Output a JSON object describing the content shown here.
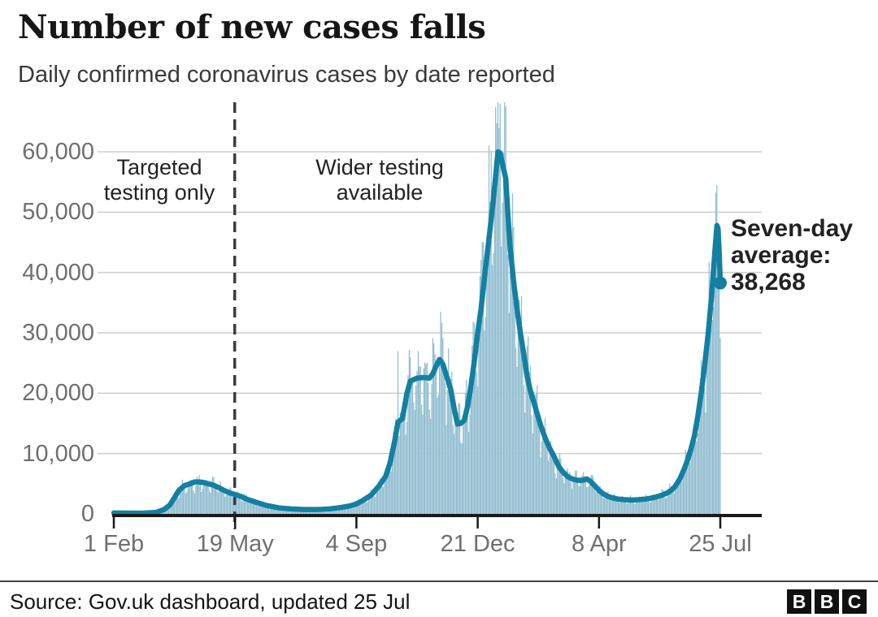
{
  "header": {
    "title": "Number of new cases falls",
    "subtitle": "Daily confirmed coronavirus cases by date reported"
  },
  "footer": {
    "source": "Source: Gov.uk dashboard, updated 25 Jul",
    "logo": [
      "B",
      "B",
      "C"
    ]
  },
  "chart_data": {
    "type": "bar",
    "overlay": "line",
    "title": "Number of new cases falls",
    "subtitle": "Daily confirmed coronavirus cases by date reported",
    "xlabel": "",
    "ylabel": "",
    "grid": "horizontal-only",
    "legend": "none",
    "ylim": [
      0,
      68000
    ],
    "x_domain_days": [
      0,
      540
    ],
    "y_ticks": [
      {
        "value": 60000,
        "label": "60,000"
      },
      {
        "value": 50000,
        "label": "50,000"
      },
      {
        "value": 40000,
        "label": "40,000"
      },
      {
        "value": 30000,
        "label": "30,000"
      },
      {
        "value": 20000,
        "label": "20,000"
      },
      {
        "value": 10000,
        "label": "10,000"
      },
      {
        "value": 0,
        "label": "0"
      }
    ],
    "x_ticks": [
      {
        "day": 0,
        "label": "1 Feb"
      },
      {
        "day": 108,
        "label": "19 May"
      },
      {
        "day": 216,
        "label": "4 Sep"
      },
      {
        "day": 324,
        "label": "21 Dec"
      },
      {
        "day": 432,
        "label": "8 Apr"
      },
      {
        "day": 540,
        "label": "25 Jul"
      }
    ],
    "dashed_divider_day": 107,
    "annotations": {
      "targeted": "Targeted\ntesting only",
      "wider": "Wider testing\navailable",
      "seven_day": "Seven-day\naverage:\n38,268"
    },
    "seven_day_average_end_value": 38268,
    "series": [
      {
        "name": "Daily confirmed cases",
        "type": "bar"
      },
      {
        "name": "Seven-day average",
        "type": "line"
      }
    ],
    "seven_day_avg_points": [
      [
        0,
        150
      ],
      [
        25,
        120
      ],
      [
        38,
        260
      ],
      [
        45,
        750
      ],
      [
        50,
        1500
      ],
      [
        54,
        2700
      ],
      [
        58,
        3900
      ],
      [
        63,
        4700
      ],
      [
        68,
        5000
      ],
      [
        72,
        5300
      ],
      [
        76,
        5300
      ],
      [
        80,
        5200
      ],
      [
        84,
        5000
      ],
      [
        88,
        4800
      ],
      [
        93,
        4400
      ],
      [
        98,
        3900
      ],
      [
        103,
        3500
      ],
      [
        108,
        3200
      ],
      [
        113,
        2900
      ],
      [
        119,
        2400
      ],
      [
        127,
        1900
      ],
      [
        136,
        1400
      ],
      [
        147,
        1000
      ],
      [
        158,
        830
      ],
      [
        170,
        720
      ],
      [
        182,
        720
      ],
      [
        193,
        850
      ],
      [
        203,
        1080
      ],
      [
        210,
        1320
      ],
      [
        216,
        1650
      ],
      [
        222,
        2250
      ],
      [
        229,
        3100
      ],
      [
        236,
        4600
      ],
      [
        242,
        6200
      ],
      [
        246,
        8500
      ],
      [
        250,
        12000
      ],
      [
        253,
        15200
      ],
      [
        257,
        15800
      ],
      [
        261,
        20000
      ],
      [
        264,
        22000
      ],
      [
        270,
        22500
      ],
      [
        276,
        22600
      ],
      [
        281,
        22500
      ],
      [
        284,
        23200
      ],
      [
        287,
        24500
      ],
      [
        290,
        25600
      ],
      [
        293,
        24800
      ],
      [
        296,
        23000
      ],
      [
        300,
        20600
      ],
      [
        303,
        17500
      ],
      [
        306,
        14900
      ],
      [
        309,
        15000
      ],
      [
        312,
        15500
      ],
      [
        315,
        17800
      ],
      [
        318,
        21200
      ],
      [
        321,
        25300
      ],
      [
        324,
        30000
      ],
      [
        327,
        34000
      ],
      [
        331,
        40800
      ],
      [
        334,
        45500
      ],
      [
        337,
        50500
      ],
      [
        340,
        56000
      ],
      [
        342,
        60000
      ],
      [
        344,
        59800
      ],
      [
        346,
        58000
      ],
      [
        349,
        55600
      ],
      [
        351,
        49300
      ],
      [
        353,
        43900
      ],
      [
        356,
        38500
      ],
      [
        359,
        34000
      ],
      [
        362,
        30000
      ],
      [
        365,
        26500
      ],
      [
        368,
        22800
      ],
      [
        371,
        20300
      ],
      [
        374,
        18500
      ],
      [
        377,
        16600
      ],
      [
        380,
        14700
      ],
      [
        384,
        12600
      ],
      [
        388,
        10900
      ],
      [
        392,
        9500
      ],
      [
        396,
        7900
      ],
      [
        400,
        6900
      ],
      [
        404,
        6200
      ],
      [
        408,
        5800
      ],
      [
        412,
        5600
      ],
      [
        416,
        5550
      ],
      [
        419,
        5650
      ],
      [
        421,
        5800
      ],
      [
        424,
        5450
      ],
      [
        428,
        4700
      ],
      [
        432,
        3900
      ],
      [
        436,
        3300
      ],
      [
        440,
        2900
      ],
      [
        444,
        2650
      ],
      [
        449,
        2450
      ],
      [
        455,
        2350
      ],
      [
        461,
        2300
      ],
      [
        467,
        2350
      ],
      [
        473,
        2450
      ],
      [
        478,
        2600
      ],
      [
        483,
        2800
      ],
      [
        488,
        3100
      ],
      [
        493,
        3500
      ],
      [
        497,
        4000
      ],
      [
        500,
        4600
      ],
      [
        504,
        5800
      ],
      [
        508,
        7500
      ],
      [
        511,
        9000
      ],
      [
        514,
        10800
      ],
      [
        517,
        13000
      ],
      [
        520,
        16200
      ],
      [
        523,
        20000
      ],
      [
        526,
        24500
      ],
      [
        529,
        29500
      ],
      [
        532,
        35500
      ],
      [
        534,
        40500
      ],
      [
        536,
        45500
      ],
      [
        537,
        47800
      ],
      [
        538,
        47300
      ],
      [
        539,
        43500
      ],
      [
        540,
        38268
      ]
    ],
    "bar_model": {
      "weekday_multipliers": [
        1.05,
        0.78,
        0.72,
        0.95,
        1.1,
        1.15,
        1.12
      ],
      "random_base": 0.88,
      "random_amplitude": 0.3,
      "max_bar_value": 68200,
      "overrides": {
        "253": 27000,
        "291": 33500,
        "344": 68000,
        "537": 54500
      }
    },
    "colors": {
      "line": "#1380A1",
      "annotation_teal": "#1380A1",
      "bar_fill": "#bcd8e4",
      "bar_stripe": "#7fb0c6",
      "grid": "#cdcdcd",
      "axis": "#1a1a1a",
      "tick_label": "#6f6f6f",
      "dashed_line": "#3d3d3d"
    }
  }
}
